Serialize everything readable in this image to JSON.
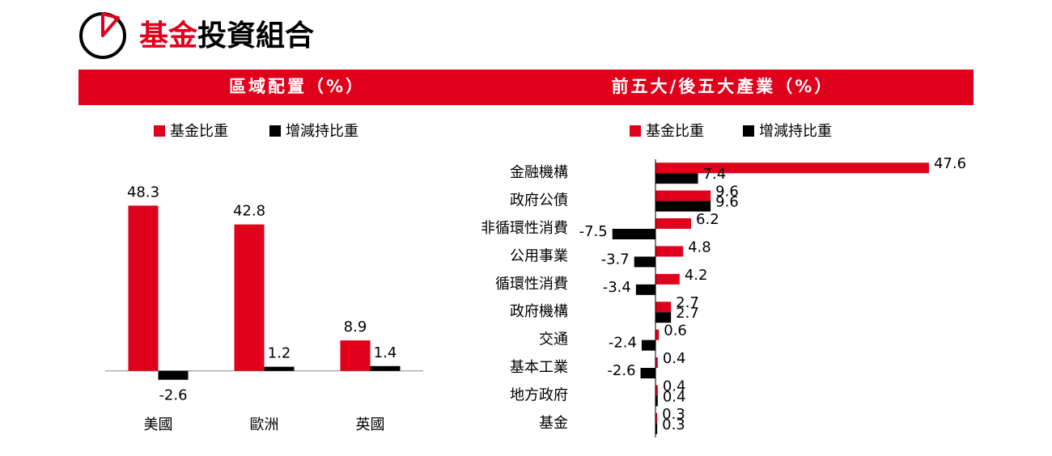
{
  "header": {
    "title_accent": "基金",
    "title_rest": "投資組合"
  },
  "chart_data": [
    {
      "type": "bar",
      "orientation": "vertical",
      "title": "區域配置（%）",
      "categories": [
        "美國",
        "歐洲",
        "英國"
      ],
      "series": [
        {
          "name": "基金比重",
          "color": "#e0001b",
          "values": [
            48.3,
            42.8,
            8.9
          ]
        },
        {
          "name": "增減持比重",
          "color": "#000000",
          "values": [
            -2.6,
            1.2,
            1.4
          ]
        }
      ],
      "ylim": [
        -10,
        55
      ]
    },
    {
      "type": "bar",
      "orientation": "horizontal",
      "title": "前五大/後五大產業（%）",
      "categories": [
        "金融機構",
        "政府公債",
        "非循環性消費",
        "公用事業",
        "循環性消費",
        "政府機構",
        "交通",
        "基本工業",
        "地方政府",
        "基金"
      ],
      "series": [
        {
          "name": "基金比重",
          "color": "#e0001b",
          "values": [
            47.6,
            9.6,
            6.2,
            4.8,
            4.2,
            2.7,
            0.6,
            0.4,
            0.4,
            0.3
          ]
        },
        {
          "name": "增減持比重",
          "color": "#000000",
          "values": [
            7.4,
            9.6,
            -7.5,
            -3.7,
            -3.4,
            2.7,
            -2.4,
            -2.6,
            0.4,
            0.3
          ]
        }
      ],
      "xlim": [
        -10,
        50
      ]
    }
  ]
}
